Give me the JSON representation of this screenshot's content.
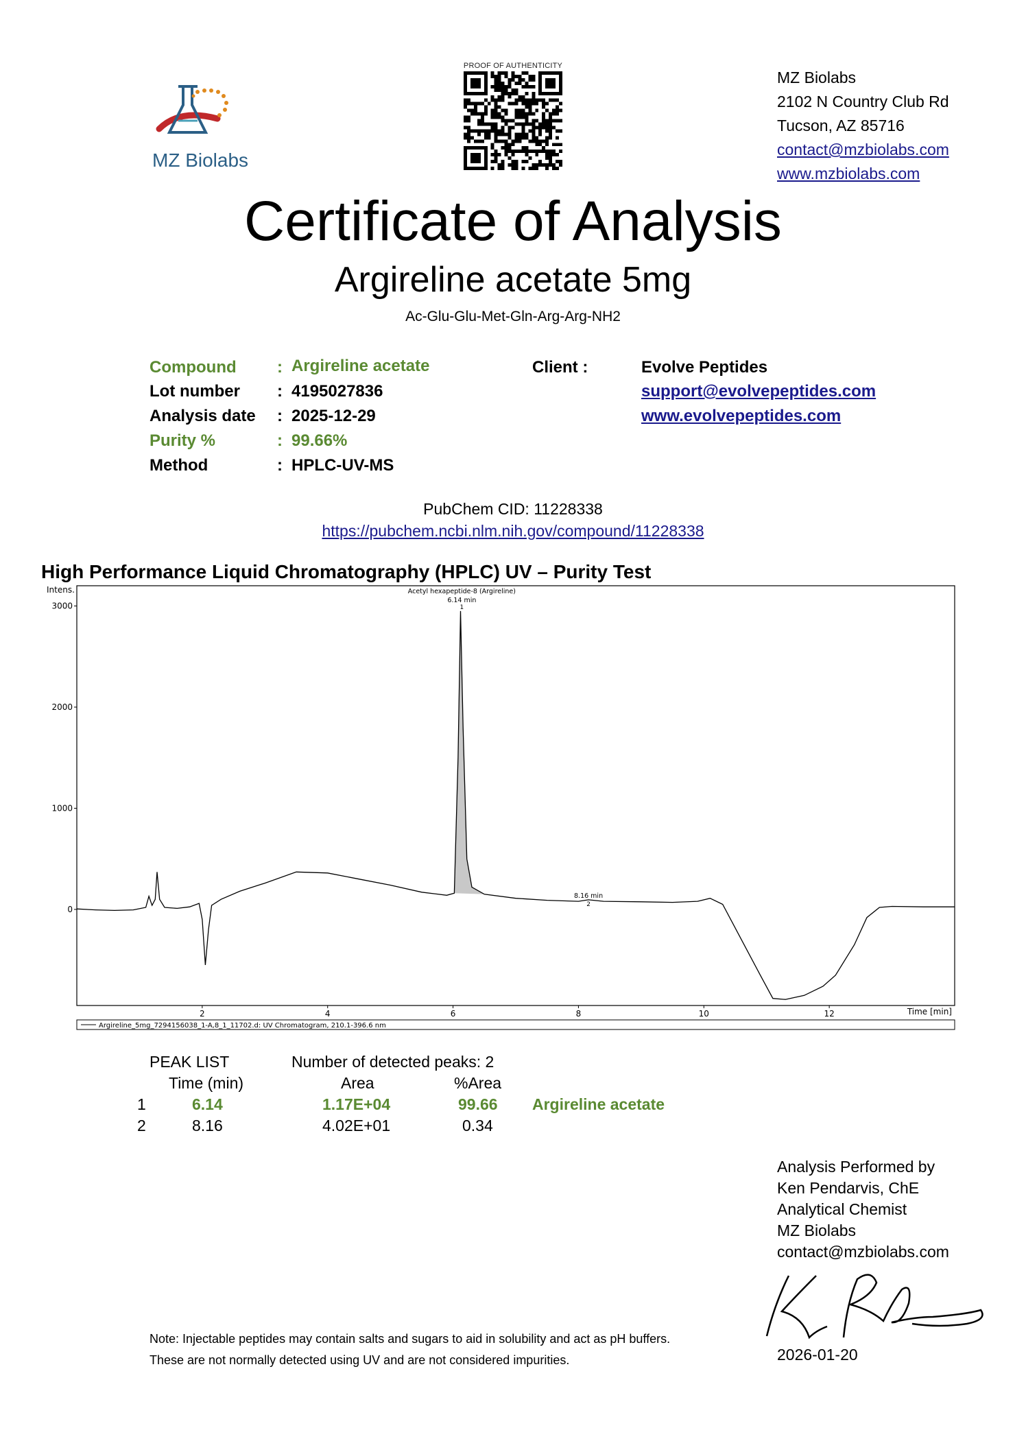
{
  "header": {
    "logo_name": "MZ Biolabs",
    "qr_caption": "PROOF OF AUTHENTICITY",
    "address": [
      "MZ Biolabs",
      "2102 N Country Club Rd",
      "Tucson, AZ 85716"
    ],
    "email": "contact@mzbiolabs.com",
    "website": "www.mzbiolabs.com"
  },
  "title": "Certificate of Analysis",
  "subtitle": "Argireline acetate  5mg",
  "formula": "Ac-Glu-Glu-Met-Gln-Arg-Arg-NH2",
  "info": {
    "compound_label": "Compound",
    "compound": "Argireline acetate",
    "lot_label": "Lot number",
    "lot": "4195027836",
    "date_label": "Analysis date",
    "date": "2025-12-29",
    "purity_label": "Purity %",
    "purity": "99.66%",
    "method_label": "Method",
    "method": "HPLC-UV-MS",
    "colon": ":",
    "client_label": "Client :",
    "client": "Evolve Peptides",
    "client_email": "support@evolvepeptides.com",
    "client_web": "www.evolvepeptides.com"
  },
  "pubchem": {
    "cid": "PubChem CID: 11228338",
    "url": "https://pubchem.ncbi.nlm.nih.gov/compound/11228338"
  },
  "hplc_title": "High Performance Liquid Chromatography (HPLC) UV – Purity Test",
  "chart_data": {
    "type": "line",
    "ylabel": "Intens.",
    "xlabel": "Time [min]",
    "xlim": [
      0,
      14.0
    ],
    "ylim": [
      -950,
      3200
    ],
    "xticks": [
      2,
      4,
      6,
      8,
      10,
      12
    ],
    "yticks": [
      0,
      1000,
      2000,
      3000
    ],
    "legend": "Argireline_5mg_7294156038_1-A,8_1_11702.d: UV Chromatogram, 210.1-396.6 nm",
    "annotations": [
      {
        "name": "Acetyl hexapeptide-8 (Argireline)",
        "time": "6.14 min",
        "peak": "1",
        "x": 6.14,
        "y": 2950
      },
      {
        "time": "8.16 min",
        "peak": "2",
        "x": 8.16,
        "y": 60
      }
    ],
    "series": [
      {
        "points": [
          [
            0,
            5
          ],
          [
            0.3,
            -5
          ],
          [
            0.6,
            -10
          ],
          [
            0.9,
            -5
          ],
          [
            1.1,
            20
          ],
          [
            1.15,
            130
          ],
          [
            1.2,
            40
          ],
          [
            1.25,
            100
          ],
          [
            1.28,
            370
          ],
          [
            1.32,
            100
          ],
          [
            1.4,
            20
          ],
          [
            1.6,
            10
          ],
          [
            1.8,
            25
          ],
          [
            1.95,
            60
          ],
          [
            2.0,
            -100
          ],
          [
            2.05,
            -550
          ],
          [
            2.1,
            -200
          ],
          [
            2.15,
            40
          ],
          [
            2.3,
            100
          ],
          [
            2.6,
            180
          ],
          [
            3.0,
            260
          ],
          [
            3.5,
            370
          ],
          [
            4.0,
            360
          ],
          [
            4.5,
            300
          ],
          [
            5.0,
            240
          ],
          [
            5.5,
            170
          ],
          [
            5.9,
            140
          ],
          [
            6.02,
            160
          ],
          [
            6.08,
            1500
          ],
          [
            6.12,
            2950
          ],
          [
            6.16,
            1800
          ],
          [
            6.22,
            500
          ],
          [
            6.3,
            220
          ],
          [
            6.5,
            150
          ],
          [
            7.0,
            110
          ],
          [
            7.5,
            90
          ],
          [
            8.0,
            80
          ],
          [
            8.16,
            95
          ],
          [
            8.4,
            80
          ],
          [
            9.0,
            75
          ],
          [
            9.5,
            70
          ],
          [
            9.9,
            80
          ],
          [
            10.1,
            110
          ],
          [
            10.3,
            50
          ],
          [
            10.6,
            -300
          ],
          [
            10.9,
            -650
          ],
          [
            11.1,
            -880
          ],
          [
            11.3,
            -890
          ],
          [
            11.6,
            -850
          ],
          [
            11.9,
            -760
          ],
          [
            12.1,
            -650
          ],
          [
            12.4,
            -350
          ],
          [
            12.6,
            -80
          ],
          [
            12.8,
            20
          ],
          [
            13.0,
            30
          ],
          [
            13.5,
            25
          ],
          [
            14.0,
            25
          ]
        ]
      }
    ]
  },
  "peaklist": {
    "title": "PEAK LIST",
    "detected": "Number of detected peaks: 2",
    "headers": [
      "Time (min)",
      "Area",
      "%Area"
    ],
    "rows": [
      {
        "n": "1",
        "time": "6.14",
        "area": "1.17E+04",
        "pct": "99.66",
        "name": "Argireline acetate"
      },
      {
        "n": "2",
        "time": "8.16",
        "area": "4.02E+01",
        "pct": "0.34",
        "name": ""
      }
    ]
  },
  "performed": [
    "Analysis Performed by",
    "Ken Pendarvis, ChE",
    "Analytical Chemist",
    "MZ Biolabs",
    "contact@mzbiolabs.com"
  ],
  "note": [
    "Note: Injectable peptides may contain salts and sugars to aid in solubility and act as pH buffers.",
    "These are not normally detected using UV and are not considered impurities."
  ],
  "signature_date": "2026-01-20",
  "colors": {
    "accent_green": "#5a8a32",
    "link": "#1a1a8c",
    "logo_blue": "#2b5f86",
    "logo_red": "#c0282a",
    "logo_orange": "#e08a1e"
  }
}
